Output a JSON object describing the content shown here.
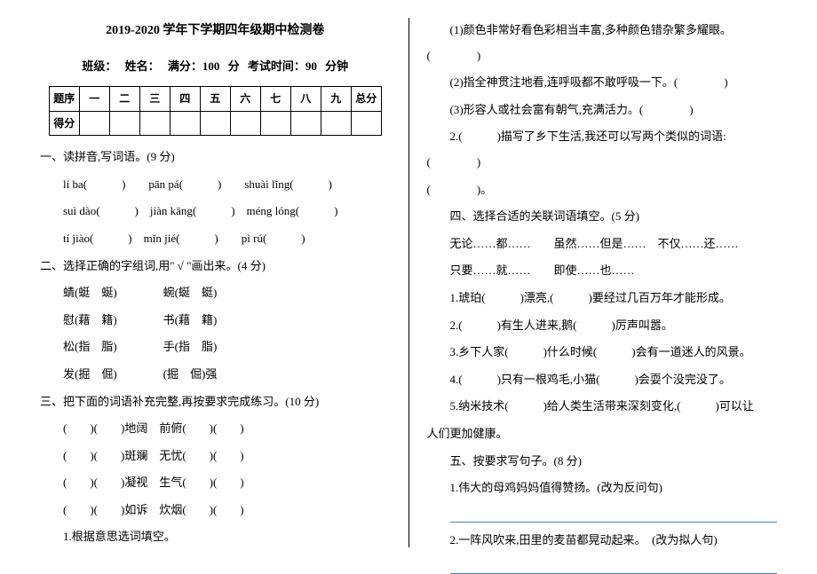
{
  "title": "2019-2020 学年下学期四年级期中检测卷",
  "info": {
    "class_label": "班级：",
    "name_label": "姓名：",
    "fullscore_label": "满分：100 分",
    "time_label": "考试时间：90 分钟"
  },
  "score_header": [
    "题序",
    "一",
    "二",
    "三",
    "四",
    "五",
    "六",
    "七",
    "八",
    "九",
    "总分"
  ],
  "score_row_label": "得分",
  "q1": {
    "heading": "一、读拼音,写词语。(9 分)",
    "row1": "lí ba(　　　)　　pān pá(　　　)　　shuài lǐng(　　　)",
    "row2": "suì dào(　　　)　jiàn kāng(　　　)　méng lóng(　　　)",
    "row3": "tí jiào(　　　)　mǐn jié(　　　)　　pì rú(　　　)"
  },
  "q2": {
    "heading": "二、选择正确的字组词,用\" √ \"画出来。(4 分)",
    "r1": "蜻(蜓　蜒)　　　　蜿(蜒　蜓)",
    "r2": "慰(藉　籍)　　　　书(藉　籍)",
    "r3": "松(指　脂)　　　　手(指　脂)",
    "r4": "发(掘　倔)　　　　(掘　倔)强"
  },
  "q3": {
    "heading": "三、把下面的词语补充完整,再按要求完成练习。(10 分)",
    "r1": "(　　)(　　)地阔　前俯(　　)(　　)",
    "r2": "(　　)(　　)斑斓　无忧(　　)(　　)",
    "r3": "(　　)(　　)凝视　生气(　　)(　　)",
    "r4": "(　　)(　　)如诉　炊烟(　　)(　　)",
    "sub": "1.根据意思选词填空。"
  },
  "right": {
    "r1": "(1)颜色非常好看色彩相当丰富,多种颜色错杂繁多耀眼。(　　　　)",
    "r2": "(2)指全神贯注地看,连呼吸都不敢呼吸一下。(　　　　)",
    "r3": "(3)形容人或社会富有朝气,充满活力。(　　　　)",
    "r4a": "2.(　　　)描写了乡下生活,我还可以写两个类似的词语:(　　　　)",
    "r4b": "(　　　　)。",
    "q4_heading": "四、选择合适的关联词语填空。(5 分)",
    "conj1": "无论……都……　　虽然……但是……　不仅……还……",
    "conj2": "只要……就……　　即使……也……",
    "q4_1": "1.琥珀(　　　)漂亮,(　　　)要经过几百万年才能形成。",
    "q4_2": "2.(　　　)有生人进来,鹅(　　　)厉声叫嚣。",
    "q4_3": "3.乡下人家(　　　)什么时候(　　　)会有一道迷人的风景。",
    "q4_4": "4.(　　　)只有一根鸡毛,小猫(　　　)会耍个没完没了。",
    "q4_5a": "5.纳米技术(　　　)给人类生活带来深刻变化,(　　　)可以让",
    "q4_5b": "人们更加健康。",
    "q5_heading": "五、按要求写句子。(8 分)",
    "q5_1": "1.伟大的母鸡妈妈值得赞扬。(改为反问句)",
    "q5_2": "2.一阵风吹来,田里的麦苗都晃动起来。　(改为拟人句)"
  }
}
